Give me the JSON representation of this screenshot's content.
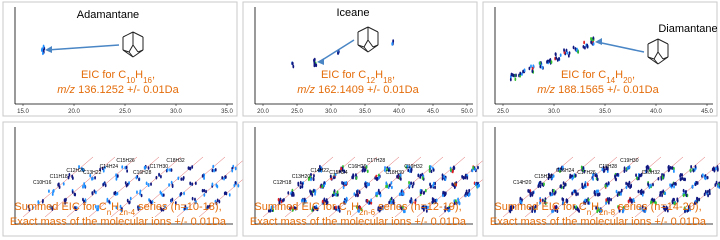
{
  "top_panels": [
    {
      "compound": "Adamantane",
      "eic": [
        "EIC for C",
        "10",
        "H",
        "16",
        ","
      ],
      "mz": [
        "m/z",
        " 136.1252 +/- 0.01Da"
      ],
      "xticks": [
        "15.0",
        "20.0",
        "25.0",
        "30.0",
        "35.0"
      ]
    },
    {
      "compound": "Iceane",
      "eic": [
        "EIC for C",
        "12",
        "H",
        "18",
        ","
      ],
      "mz": [
        "m/z",
        " 162.1409 +/- 0.01Da"
      ],
      "xticks": [
        "20.0",
        "25.0",
        "30.0",
        "35.0",
        "40.0",
        "45.0",
        "50.0"
      ]
    },
    {
      "compound": "Diamantane",
      "eic": [
        "EIC for C",
        "14",
        "H",
        "20",
        ","
      ],
      "mz": [
        "m/z",
        " 188.1565 +/- 0.01Da"
      ],
      "xticks": [
        "25.0",
        "30.0",
        "35.0",
        "40.0",
        "45.0"
      ]
    }
  ],
  "bottom_panels": [
    {
      "eic": [
        "Summed EIC for C",
        "n",
        "H",
        "2n-4",
        " series (n=10-18),"
      ],
      "note": "Exact mass of the molecular ions +/- 0.01Da",
      "peaks": [
        "C10H16",
        "C11H18",
        "C12H20",
        "C13H22",
        "C14H24",
        "C15H26",
        "C16H28",
        "C17H30",
        "C18H32"
      ]
    },
    {
      "eic": [
        "Summed EIC for C",
        "n",
        "H",
        "2n-6",
        " series (n=12-19),"
      ],
      "note": "Exact mass of the molecular ions +/- 0.01Da",
      "peaks": [
        "C12H18",
        "C13H20",
        "C14H22",
        "C15H24",
        "C16H26",
        "C17H28",
        "C18H30",
        "C19H32"
      ]
    },
    {
      "eic": [
        "Summed EIC for C",
        "n",
        "H",
        "2n-8",
        " series (n=14-20),"
      ],
      "note": "Exact mass of the molecular ions +/- 0.01Da",
      "peaks": [
        "C14H20",
        "C15H22",
        "C16H24",
        "C17H26",
        "C18H28",
        "C19H30",
        "C20H32"
      ]
    }
  ]
}
